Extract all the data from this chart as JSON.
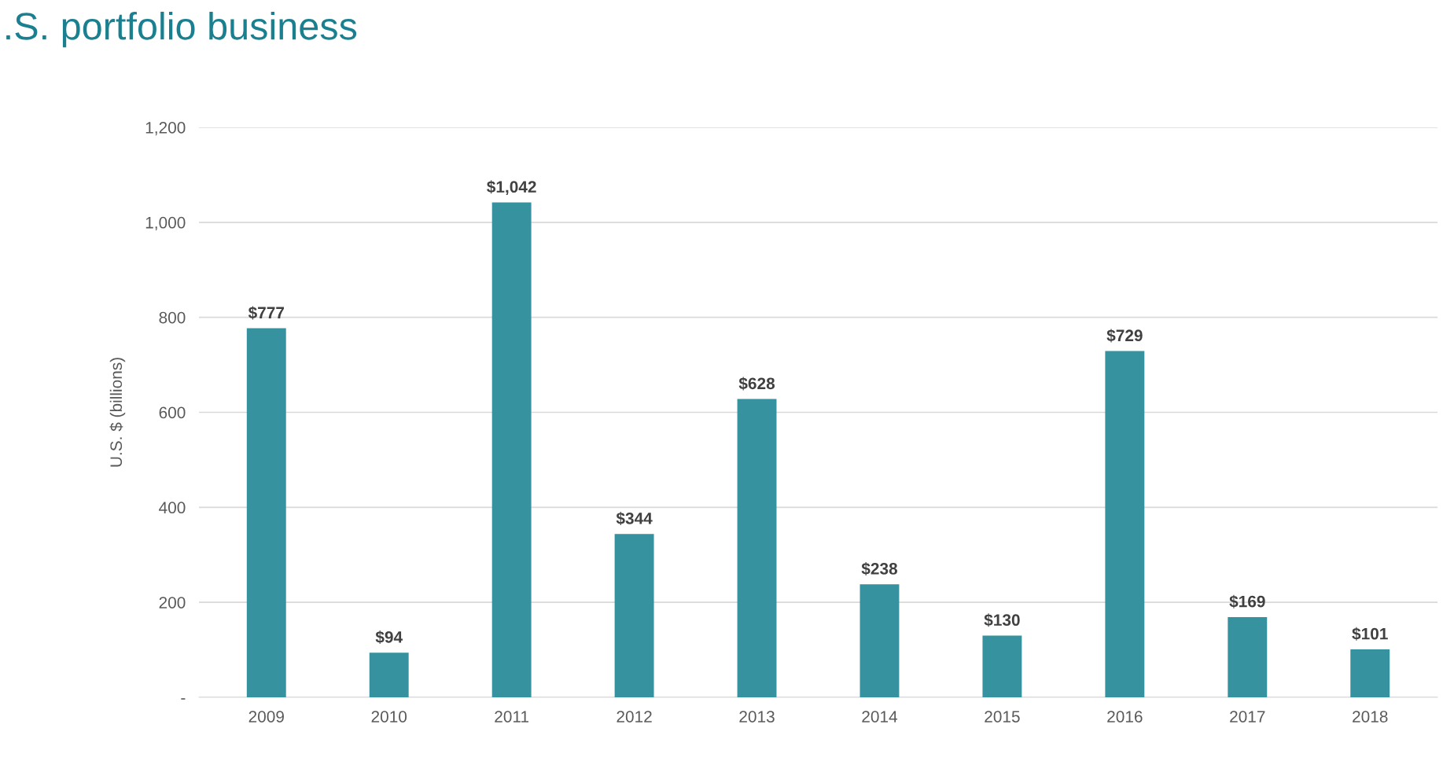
{
  "chart_data": {
    "type": "bar",
    "title": ".S. portfolio business",
    "ylabel": "U.S. $ (billions)",
    "categories": [
      "2009",
      "2010",
      "2011",
      "2012",
      "2013",
      "2014",
      "2015",
      "2016",
      "2017",
      "2018"
    ],
    "values": [
      777,
      94,
      1042,
      344,
      628,
      238,
      130,
      729,
      169,
      101
    ],
    "value_labels": [
      "$777",
      "$94",
      "$1,042",
      "$344",
      "$628",
      "$238",
      "$130",
      "$729",
      "$169",
      "$101"
    ],
    "color": "#35929e",
    "ylim": [
      0,
      1200
    ],
    "yticks": [
      {
        "value": 0,
        "label": "-"
      },
      200,
      400,
      600,
      800,
      {
        "value": 1000,
        "label": "1,000"
      },
      {
        "value": 1200,
        "label": "1,200"
      }
    ],
    "grid": "y",
    "legend": false
  }
}
